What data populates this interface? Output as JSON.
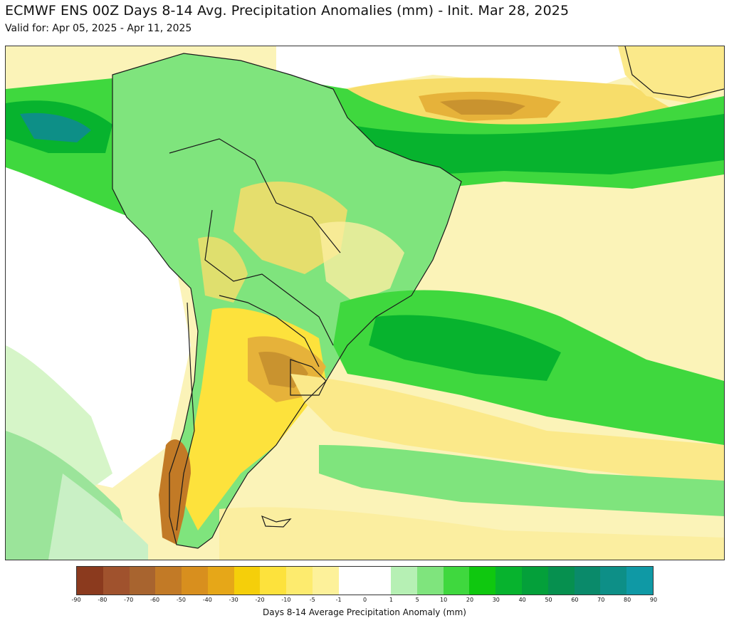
{
  "header": {
    "title": "ECMWF ENS 00Z Days 8-14 Avg. Precipitation Anomalies (mm) - Init. Mar 28, 2025",
    "subtitle": "Valid for: Apr 05, 2025 - Apr 11, 2025"
  },
  "colorbar": {
    "label": "Days 8-14 Average Precipitation Anomaly (mm)",
    "ticks": [
      "-90",
      "-80",
      "-70",
      "-60",
      "-50",
      "-40",
      "-30",
      "-20",
      "-10",
      "-5",
      "-1",
      "0",
      "1",
      "5",
      "10",
      "20",
      "30",
      "40",
      "50",
      "60",
      "70",
      "80",
      "90"
    ],
    "colors": [
      "#8b3a1e",
      "#a0522d",
      "#a8642f",
      "#c27a26",
      "#d88f1e",
      "#e6a718",
      "#f5cf0a",
      "#fde23c",
      "#fdeb6e",
      "#fdf19a",
      "#ffffff",
      "#ffffff",
      "#b6f0b4",
      "#7fe47d",
      "#3fd83e",
      "#0fc80f",
      "#07b32e",
      "#04a03a",
      "#06904f",
      "#0a8a6a",
      "#0d8f87",
      "#0f99a5",
      "#11a9c2"
    ]
  },
  "map": {
    "region": "South America",
    "palette": {
      "land_outline": "#1a1a1a",
      "dry_strong": "#c27a26",
      "dry_moderate": "#e6b23a",
      "dry_light": "#f7dd6a",
      "dry_faint": "#fbeea0",
      "wet_light": "#b6f0b4",
      "wet_moderate": "#3fd83e",
      "wet_strong": "#07b32e",
      "wet_heavy": "#0a8a6a",
      "wet_extreme": "#11a9c2"
    }
  }
}
